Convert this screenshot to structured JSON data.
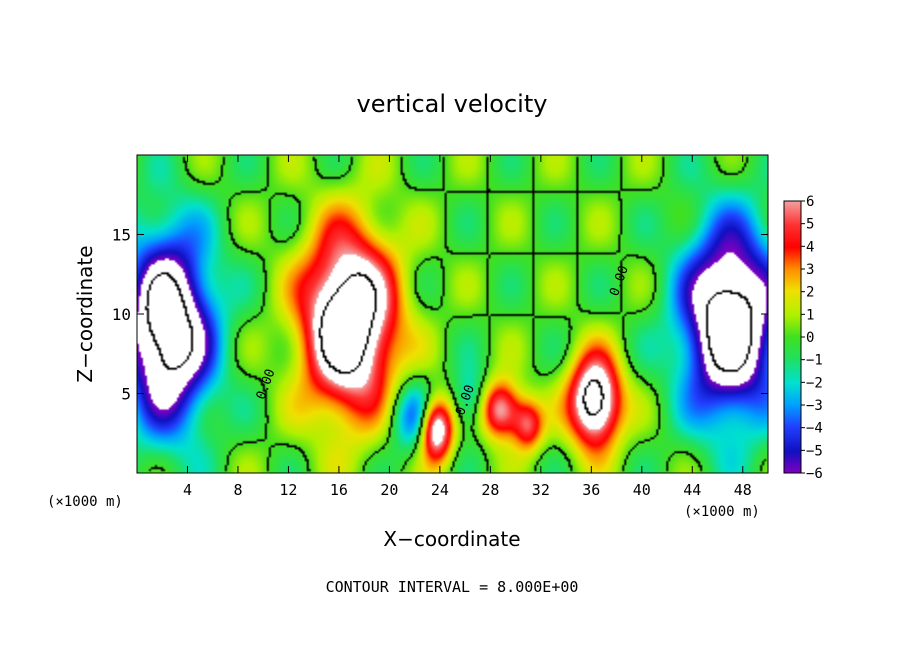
{
  "chart_data": {
    "type": "heatmap",
    "title": "vertical velocity",
    "xlabel": "X−coordinate",
    "ylabel": "Z−coordinate",
    "x_unit_label": "(×1000 m)",
    "x_unit_label_right": "(×1000 m)",
    "footer": "CONTOUR INTERVAL = 8.000E+00",
    "xlim": [
      0,
      50
    ],
    "ylim": [
      0,
      20
    ],
    "x_ticks": [
      4,
      8,
      12,
      16,
      20,
      24,
      28,
      32,
      36,
      40,
      44,
      48
    ],
    "y_ticks": [
      5,
      10,
      15
    ],
    "colorbar": {
      "min": -6,
      "max": 6,
      "ticks": [
        6,
        5,
        4,
        3,
        2,
        1,
        0,
        -1,
        -2,
        -3,
        -4,
        -5,
        -6
      ],
      "tick_labels": [
        "6",
        "5",
        "4",
        "3",
        "2",
        "1",
        "0",
        "−1",
        "−2",
        "−3",
        "−4",
        "−5",
        "−6"
      ]
    },
    "contour_labels": [
      {
        "text": "0.00",
        "x": 10.5,
        "z": 5.5
      },
      {
        "text": "0.00",
        "x": 26.3,
        "z": 4.5
      },
      {
        "text": "0.00",
        "x": 38.5,
        "z": 12.0
      }
    ],
    "features": [
      {
        "name": "updraft-core-left",
        "x": 16.5,
        "z": 8.5,
        "w": 10
      },
      {
        "name": "updraft-small-1",
        "x": 23.8,
        "z": 3.0,
        "w": 8
      },
      {
        "name": "updraft-small-2",
        "x": 28.8,
        "z": 4.0,
        "w": 6
      },
      {
        "name": "updraft-small-3",
        "x": 36.2,
        "z": 4.2,
        "w": 7
      },
      {
        "name": "downdraft-left",
        "x": 3.0,
        "z": 7.0,
        "w": -8
      },
      {
        "name": "downdraft-right",
        "x": 46.5,
        "z": 8.0,
        "w": -8
      }
    ],
    "grid": false,
    "legend": "right"
  }
}
